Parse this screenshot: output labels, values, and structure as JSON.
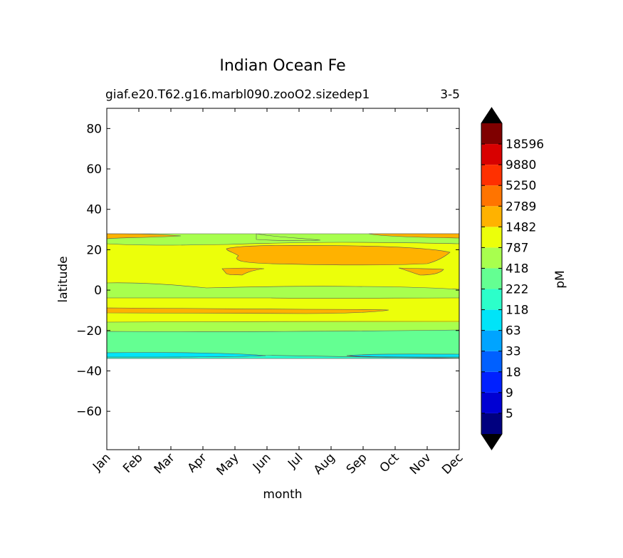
{
  "chart_data": {
    "type": "contourf",
    "title": "Indian Ocean Fe",
    "subtitle_left": "giaf.e20.T62.g16.marbl090.zooO2.sizedep1",
    "subtitle_right": "3-5",
    "xlabel": "month",
    "ylabel": "latitude",
    "x_categories": [
      "Jan",
      "Feb",
      "Mar",
      "Apr",
      "May",
      "Jun",
      "Jul",
      "Aug",
      "Sep",
      "Oct",
      "Nov",
      "Dec"
    ],
    "ylim": [
      -79,
      90
    ],
    "yticks": [
      80,
      60,
      40,
      20,
      0,
      -20,
      -40,
      -60
    ],
    "ytick_labels": [
      "80",
      "60",
      "40",
      "20",
      "0",
      "−20",
      "−40",
      "−60"
    ],
    "data_lat_range": [
      -34,
      27
    ],
    "colorbar": {
      "label": "pM",
      "extend": "both",
      "tick_labels": [
        "5",
        "9",
        "18",
        "33",
        "63",
        "118",
        "222",
        "418",
        "787",
        "1482",
        "2789",
        "5250",
        "9880",
        "18596"
      ],
      "under_color": "#000000",
      "over_color": "#000000",
      "band_colors": [
        "#00007f",
        "#0000d3",
        "#0020ff",
        "#0060ff",
        "#00a4ff",
        "#00e4f8",
        "#2cffca",
        "#64ff92",
        "#a8ff4e",
        "#ecff0a",
        "#ffb200",
        "#ff7400",
        "#ff3000",
        "#d80000",
        "#7f0000"
      ]
    },
    "bands_by_latitude": [
      {
        "lat_range": [
          25,
          27
        ],
        "level": "2789-5250",
        "note": "patches near Jan-Mar and Oct-Dec"
      },
      {
        "lat_range": [
          21,
          26
        ],
        "level": "787-1482"
      },
      {
        "lat_range": [
          4,
          21
        ],
        "level": "1482-2789",
        "note": "inner core 2789+ from May-Dec near 10 to 21 N"
      },
      {
        "lat_range": [
          -4,
          2
        ],
        "level": "787-1482"
      },
      {
        "lat_range": [
          -11,
          -9
        ],
        "level": "2789-5250",
        "note": "Jan-Sep"
      },
      {
        "lat_range": [
          -15,
          -4
        ],
        "level": "1482-2789"
      },
      {
        "lat_range": [
          -20,
          -15
        ],
        "level": "418-787"
      },
      {
        "lat_range": [
          -32,
          -20
        ],
        "level": "222-418"
      },
      {
        "lat_range": [
          -34,
          -32
        ],
        "level": "118-222",
        "note": "patches Jan-Jun and Sep-Dec"
      }
    ]
  }
}
